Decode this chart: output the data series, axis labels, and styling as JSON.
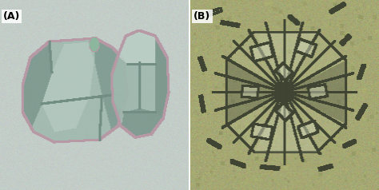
{
  "panel_A_label": "(A)",
  "panel_B_label": "(B)",
  "fig_width": 4.74,
  "fig_height": 2.38,
  "dpi": 100,
  "panel_A_bg": [
    195,
    205,
    200
  ],
  "panel_B_bg": [
    165,
    168,
    115
  ],
  "label_fontsize": 9,
  "label_color": "black",
  "label_fontweight": "bold",
  "label_bg": "white"
}
